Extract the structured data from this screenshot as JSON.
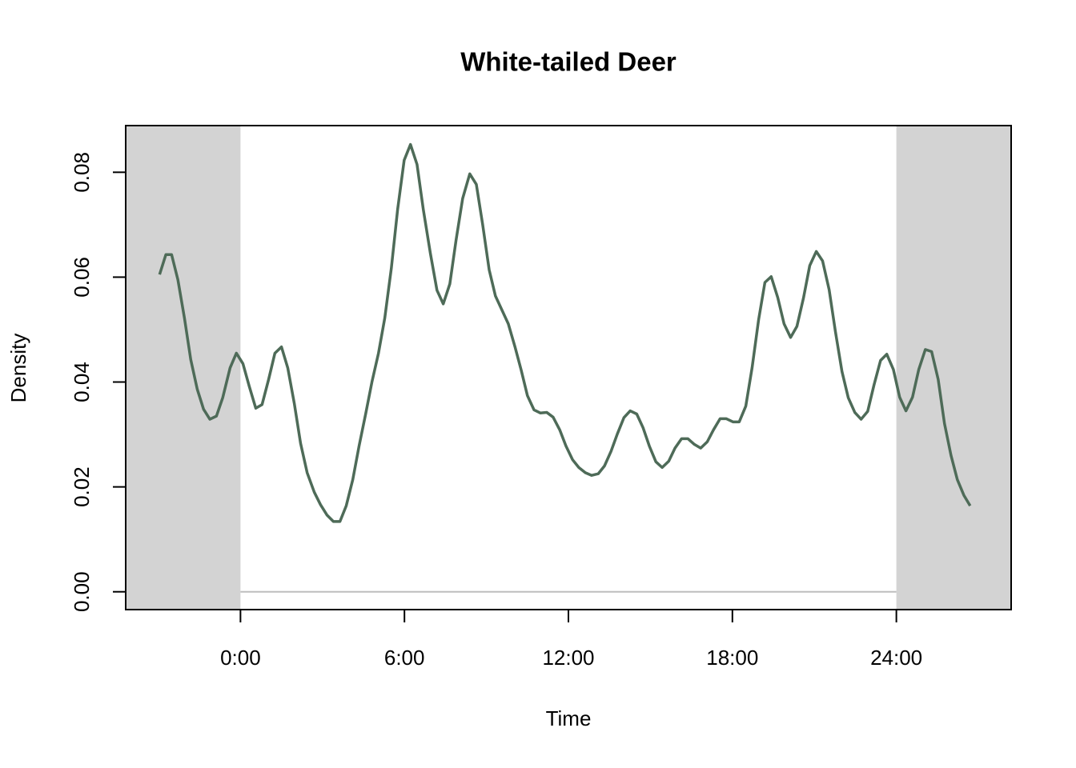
{
  "chart_data": {
    "type": "line",
    "title": "White-tailed Deer",
    "xlabel": "Time",
    "ylabel": "Density",
    "xlim": [
      -4.2,
      28.2
    ],
    "ylim": [
      -0.0034,
      0.0889
    ],
    "xticks": [
      {
        "value": 0,
        "label": "0:00"
      },
      {
        "value": 6,
        "label": "6:00"
      },
      {
        "value": 12,
        "label": "12:00"
      },
      {
        "value": 18,
        "label": "18:00"
      },
      {
        "value": 24,
        "label": "24:00"
      }
    ],
    "yticks": [
      {
        "value": 0,
        "label": "0.00"
      },
      {
        "value": 0.02,
        "label": "0.02"
      },
      {
        "value": 0.04,
        "label": "0.04"
      },
      {
        "value": 0.06,
        "label": "0.06"
      },
      {
        "value": 0.08,
        "label": "0.08"
      }
    ],
    "day_range": [
      0,
      24
    ],
    "shade_color": "#d3d3d3",
    "baseline_color": "#bebebe",
    "series": [
      {
        "color": "#4e6b58",
        "x": [
          -2.96,
          -2.73,
          -2.52,
          -2.29,
          -2.05,
          -1.82,
          -1.58,
          -1.35,
          -1.12,
          -0.88,
          -0.65,
          -0.38,
          -0.15,
          0.09,
          0.32,
          0.56,
          0.79,
          1.03,
          1.26,
          1.5,
          1.73,
          1.97,
          2.2,
          2.44,
          2.7,
          2.93,
          3.17,
          3.4,
          3.64,
          3.87,
          4.11,
          4.34,
          4.58,
          4.81,
          5.05,
          5.28,
          5.52,
          5.75,
          5.99,
          6.22,
          6.46,
          6.69,
          6.95,
          7.19,
          7.42,
          7.66,
          7.89,
          8.13,
          8.39,
          8.63,
          8.86,
          9.1,
          9.33,
          9.57,
          9.8,
          10.04,
          10.27,
          10.5,
          10.74,
          10.97,
          11.21,
          11.44,
          11.68,
          11.91,
          12.15,
          12.38,
          12.62,
          12.85,
          13.09,
          13.32,
          13.56,
          13.79,
          14.03,
          14.26,
          14.5,
          14.73,
          14.96,
          15.2,
          15.43,
          15.67,
          15.9,
          16.14,
          16.37,
          16.61,
          16.84,
          17.08,
          17.31,
          17.55,
          17.78,
          18.02,
          18.25,
          18.49,
          18.72,
          18.96,
          19.19,
          19.42,
          19.66,
          19.89,
          20.13,
          20.36,
          20.6,
          20.83,
          21.07,
          21.3,
          21.54,
          21.77,
          22.01,
          22.24,
          22.48,
          22.71,
          22.95,
          23.18,
          23.42,
          23.65,
          23.89,
          24.12,
          24.35,
          24.59,
          24.82,
          25.06,
          25.29,
          25.53,
          25.76,
          26.0,
          26.23,
          26.47,
          26.7
        ],
        "values": [
          0.0605,
          0.0643,
          0.0643,
          0.0595,
          0.0522,
          0.0443,
          0.0386,
          0.0348,
          0.0329,
          0.0335,
          0.037,
          0.0427,
          0.0455,
          0.0435,
          0.0392,
          0.035,
          0.0357,
          0.0405,
          0.0455,
          0.0467,
          0.0427,
          0.0359,
          0.0283,
          0.0227,
          0.019,
          0.0166,
          0.0146,
          0.0134,
          0.0134,
          0.0164,
          0.0214,
          0.0278,
          0.0339,
          0.04,
          0.0455,
          0.0522,
          0.0617,
          0.0729,
          0.0823,
          0.0853,
          0.0815,
          0.0729,
          0.0645,
          0.0575,
          0.0549,
          0.0587,
          0.0671,
          0.075,
          0.0797,
          0.0777,
          0.0701,
          0.0614,
          0.0564,
          0.0537,
          0.0511,
          0.0468,
          0.0423,
          0.0374,
          0.0347,
          0.0341,
          0.0342,
          0.0333,
          0.0309,
          0.0278,
          0.0252,
          0.0237,
          0.0227,
          0.0222,
          0.0225,
          0.024,
          0.0268,
          0.0301,
          0.0332,
          0.0345,
          0.0339,
          0.0313,
          0.0278,
          0.0248,
          0.0237,
          0.0249,
          0.0274,
          0.0292,
          0.0292,
          0.0281,
          0.0274,
          0.0286,
          0.0309,
          0.033,
          0.033,
          0.0324,
          0.0324,
          0.0354,
          0.0427,
          0.0519,
          0.059,
          0.0601,
          0.0561,
          0.0511,
          0.0485,
          0.0506,
          0.056,
          0.0622,
          0.0649,
          0.0631,
          0.0576,
          0.0496,
          0.042,
          0.037,
          0.0342,
          0.0329,
          0.0344,
          0.0394,
          0.0441,
          0.0453,
          0.0424,
          0.0371,
          0.0345,
          0.0371,
          0.0424,
          0.0462,
          0.0458,
          0.0405,
          0.0321,
          0.026,
          0.0214,
          0.0184,
          0.0164
        ]
      }
    ]
  }
}
